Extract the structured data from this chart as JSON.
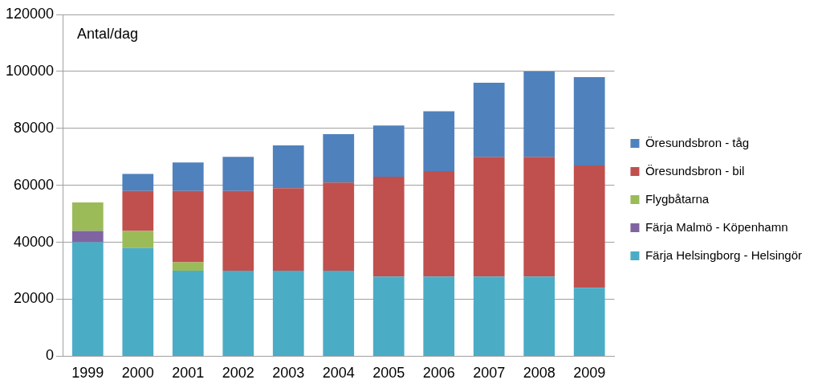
{
  "chart_data": {
    "type": "bar",
    "stacked": true,
    "categories": [
      "1999",
      "2000",
      "2001",
      "2002",
      "2003",
      "2004",
      "2005",
      "2006",
      "2007",
      "2008",
      "2009"
    ],
    "series": [
      {
        "name": "Färja Helsingborg - Helsingör",
        "color": "#4bacc6",
        "values": [
          40000,
          38000,
          30000,
          30000,
          30000,
          30000,
          28000,
          28000,
          28000,
          28000,
          24000
        ]
      },
      {
        "name": "Färja Malmö - Köpenhamn",
        "color": "#8064a2",
        "values": [
          4000,
          null,
          null,
          null,
          null,
          null,
          null,
          null,
          null,
          null,
          null
        ]
      },
      {
        "name": "Flygbåtarna",
        "color": "#9bbb59",
        "values": [
          10000,
          6000,
          3000,
          null,
          null,
          null,
          null,
          null,
          null,
          null,
          null
        ]
      },
      {
        "name": "Öresundsbron - bil",
        "color": "#c0504d",
        "values": [
          null,
          14000,
          25000,
          28000,
          29000,
          31000,
          35000,
          37000,
          42000,
          42000,
          43000
        ]
      },
      {
        "name": "Öresundsbron - tåg",
        "color": "#4f81bd",
        "values": [
          null,
          6000,
          10000,
          12000,
          15000,
          17000,
          18000,
          21000,
          26000,
          30000,
          31000
        ]
      }
    ],
    "ylim": [
      0,
      120000
    ],
    "yticks": [
      0,
      20000,
      40000,
      60000,
      80000,
      100000,
      120000
    ],
    "grid": "y",
    "legend": "right",
    "annotations": [
      "Antal/dag"
    ]
  }
}
